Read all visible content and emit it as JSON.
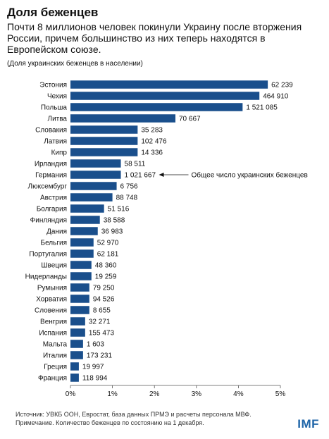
{
  "header": {
    "title": "Доля беженцев",
    "subtitle": "Почти 8 миллионов человек покинули Украину после вторжения России, причем большинство из них теперь находятся в Европейском союзе.",
    "note": "(Доля украинских беженцев в населении)"
  },
  "chart_data": {
    "type": "bar",
    "orientation": "horizontal",
    "categories": [
      "Эстония",
      "Чехия",
      "Польша",
      "Литва",
      "Словакия",
      "Латвия",
      "Кипр",
      "Ирландия",
      "Германия",
      "Люксембург",
      "Австрия",
      "Болгария",
      "Финляндия",
      "Дания",
      "Бельгия",
      "Португалия",
      "Швеция",
      "Нидерланды",
      "Румыния",
      "Хорватия",
      "Словения",
      "Венгрия",
      "Испания",
      "Мальта",
      "Италия",
      "Греция",
      "Франция"
    ],
    "values": [
      4.7,
      4.5,
      4.1,
      2.5,
      1.6,
      1.6,
      1.6,
      1.2,
      1.2,
      1.1,
      1.0,
      0.8,
      0.7,
      0.65,
      0.55,
      0.55,
      0.5,
      0.5,
      0.45,
      0.45,
      0.45,
      0.35,
      0.35,
      0.3,
      0.3,
      0.2,
      0.2
    ],
    "data_labels": [
      "62 239",
      "464 910",
      "1 521 085",
      "70 667",
      "35 283",
      "102 476",
      "14 336",
      "58 511",
      "1 021 667",
      "6 756",
      "88 748",
      "51 516",
      "38 588",
      "36 983",
      "52 970",
      "62 181",
      "48 360",
      "19 259",
      "79 250",
      "94 526",
      "8 655",
      "32 271",
      "155 473",
      "1 603",
      "173 231",
      "19 997",
      "118 994"
    ],
    "xlim": [
      0,
      5
    ],
    "xticks": [
      "0%",
      "1%",
      "2%",
      "3%",
      "4%",
      "5%"
    ],
    "grid": false,
    "bar_color": "#1a4f8c",
    "annotation": {
      "category": "Германия",
      "text": "Общее число украинских беженцев"
    }
  },
  "footer": {
    "source": "Источник: УВКБ ООН, Евростат, база данных ПРМЭ и расчеты персонала МВФ.",
    "remark": "Примечание.  Количество беженцев  по состоянию на 1 декабря."
  },
  "logo": {
    "text": "IMF",
    "color": "#1f65a8"
  }
}
